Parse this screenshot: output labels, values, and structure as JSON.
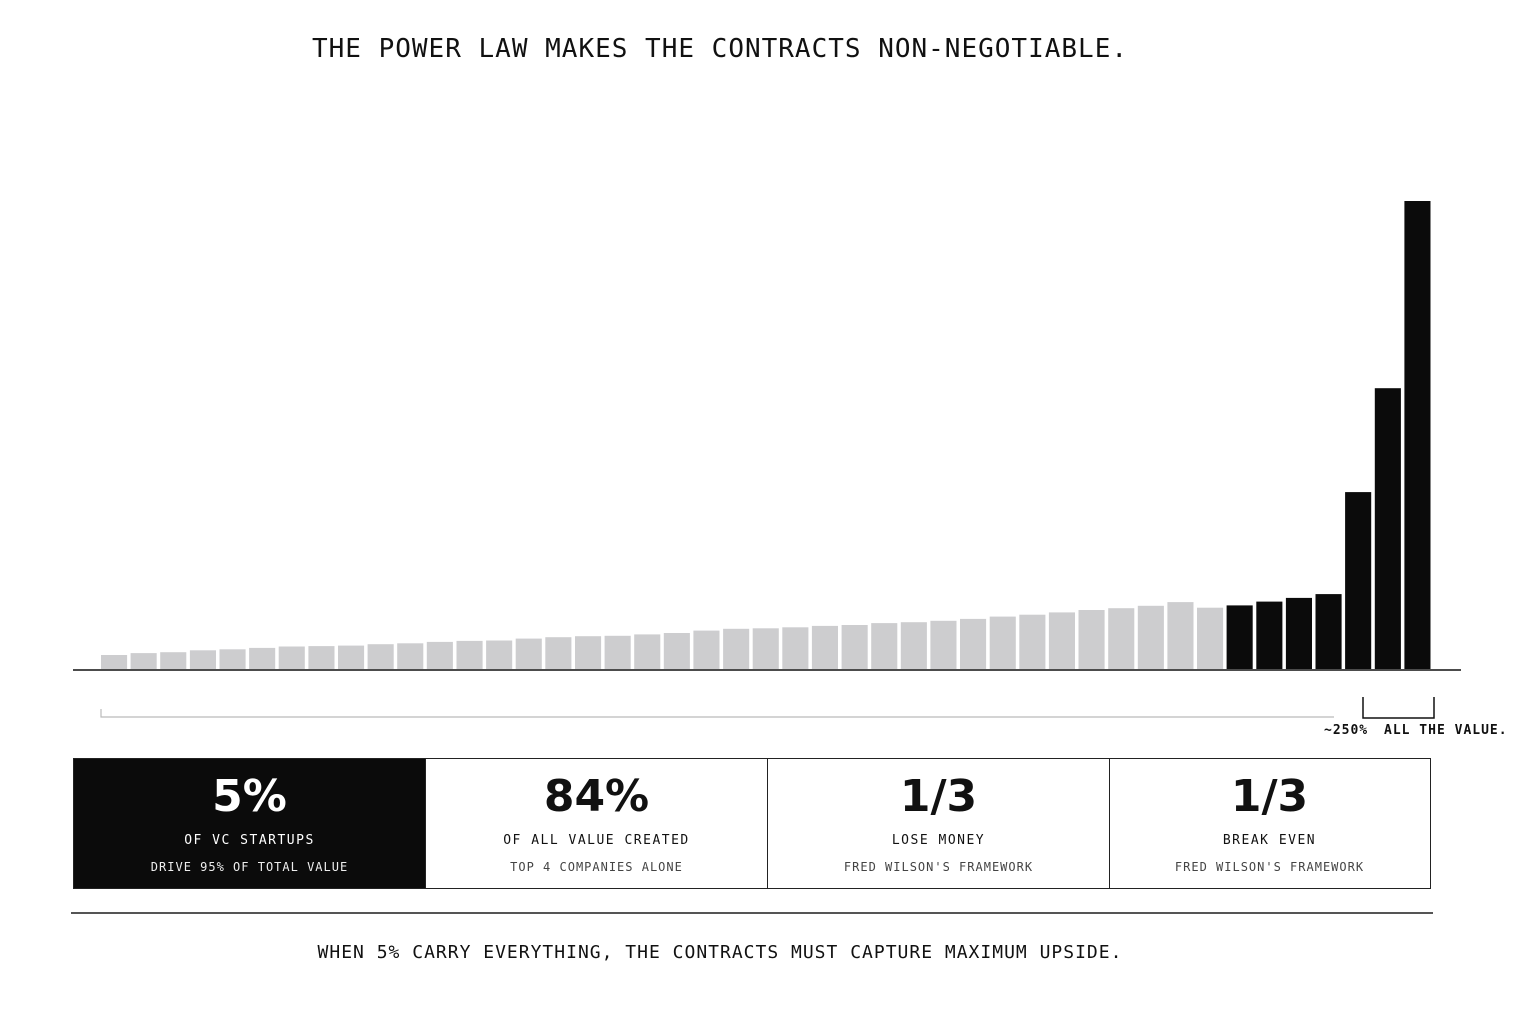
{
  "title": "THE POWER LAW MAKES THE CONTRACTS NON-NEGOTIABLE.",
  "colors": {
    "minor_bar": "#cdcdcf",
    "top_bar": "#0b0b0b",
    "background": "#ffffff"
  },
  "chart_data": {
    "type": "bar",
    "title": "THE POWER LAW MAKES THE CONTRACTS NON-NEGOTIABLE.",
    "xlabel": "",
    "ylabel": "",
    "ylim": [
      0,
      100
    ],
    "grid": false,
    "legend": "none",
    "values": [
      3.0,
      3.4,
      3.6,
      4.0,
      4.2,
      4.5,
      4.8,
      4.9,
      5.0,
      5.3,
      5.5,
      5.8,
      6.0,
      6.1,
      6.5,
      6.8,
      7.0,
      7.1,
      7.4,
      7.7,
      8.2,
      8.6,
      8.7,
      8.9,
      9.2,
      9.4,
      9.8,
      10.0,
      10.3,
      10.7,
      11.2,
      11.6,
      12.1,
      12.6,
      13.0,
      13.5,
      14.3,
      13.1,
      13.6,
      14.4,
      15.2,
      16.0,
      37.8,
      60.0,
      100.0
    ],
    "highlight_from_index": 38,
    "highlight_label": "ALL THE VALUE.",
    "axis_note": "~250%"
  },
  "stats": [
    {
      "value": "5%",
      "label": "OF VC STARTUPS",
      "sub": "DRIVE 95% OF TOTAL VALUE",
      "dark": true
    },
    {
      "value": "84%",
      "label": "OF ALL VALUE CREATED",
      "sub": "TOP 4 COMPANIES ALONE",
      "dark": false
    },
    {
      "value": "1/3",
      "label": "LOSE MONEY",
      "sub": "FRED WILSON'S FRAMEWORK",
      "dark": false
    },
    {
      "value": "1/3",
      "label": "BREAK EVEN",
      "sub": "FRED WILSON'S FRAMEWORK",
      "dark": false
    }
  ],
  "footer": "WHEN 5% CARRY EVERYTHING, THE CONTRACTS MUST CAPTURE MAXIMUM UPSIDE."
}
